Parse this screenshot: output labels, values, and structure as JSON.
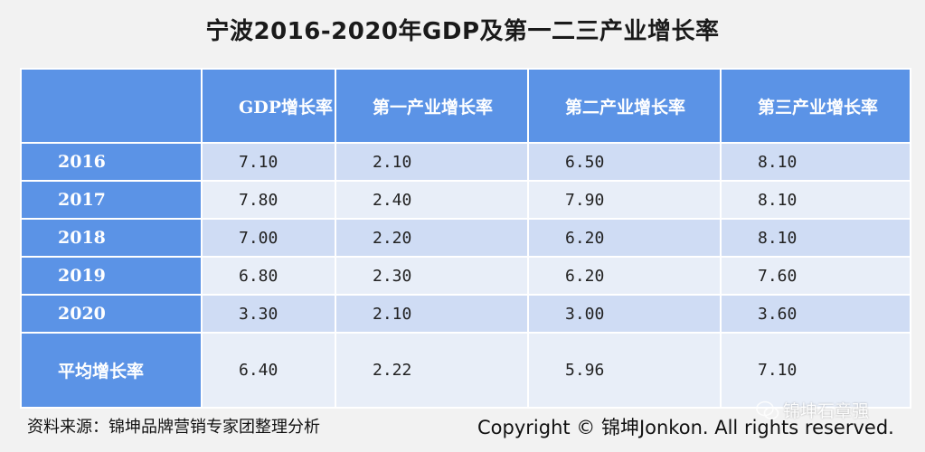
{
  "title": "宁波2016-2020年GDP及第一二三产业增长率",
  "table": {
    "headers": [
      "",
      "GDP增长率",
      "第一产业增长率",
      "第二产业增长率",
      "第三产业增长率"
    ],
    "rows": [
      {
        "label": "2016",
        "values": [
          "7.10",
          "2.10",
          "6.50",
          "8.10"
        ]
      },
      {
        "label": "2017",
        "values": [
          "7.80",
          "2.40",
          "7.90",
          "8.10"
        ]
      },
      {
        "label": "2018",
        "values": [
          "7.00",
          "2.20",
          "6.20",
          "8.10"
        ]
      },
      {
        "label": "2019",
        "values": [
          "6.80",
          "2.30",
          "6.20",
          "7.60"
        ]
      },
      {
        "label": "2020",
        "values": [
          "3.30",
          "2.10",
          "3.00",
          "3.60"
        ]
      },
      {
        "label": "平均增长率",
        "values": [
          "6.40",
          "2.22",
          "5.96",
          "7.10"
        ]
      }
    ]
  },
  "footer": {
    "source": "资料来源：锦坤品牌营销专家团整理分析",
    "copyright": "Copyright © 锦坤Jonkon. All rights reserved."
  },
  "watermark": {
    "text": "锦坤石章强",
    "icon": "wechat-icon"
  },
  "colors": {
    "header_blue": "#5b93e6",
    "row_light": "#cfdcf4",
    "row_lighter": "#e8eef8",
    "background": "#f2f2f2"
  }
}
